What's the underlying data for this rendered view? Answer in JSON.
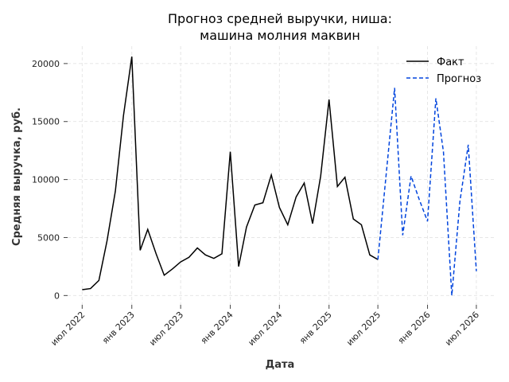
{
  "chart_data": {
    "type": "line",
    "title": [
      "Прогноз средней выручки, ниша:",
      "машина молния маквин"
    ],
    "xlabel": "Дата",
    "ylabel": "Средняя выручка, руб.",
    "x_ticks": [
      {
        "date": "2022-07-01",
        "label": "июл 2022"
      },
      {
        "date": "2023-01-01",
        "label": "янв 2023"
      },
      {
        "date": "2023-07-01",
        "label": "июл 2023"
      },
      {
        "date": "2024-01-01",
        "label": "янв 2024"
      },
      {
        "date": "2024-07-01",
        "label": "июл 2024"
      },
      {
        "date": "2025-01-01",
        "label": "янв 2025"
      },
      {
        "date": "2025-07-01",
        "label": "июл 2025"
      },
      {
        "date": "2026-01-01",
        "label": "янв 2026"
      },
      {
        "date": "2026-07-01",
        "label": "июл 2026"
      }
    ],
    "y_ticks": [
      0,
      5000,
      10000,
      15000,
      20000
    ],
    "xlim": [
      "2022-05-08",
      "2026-09-04"
    ],
    "ylim": [
      -800,
      21500
    ],
    "grid": true,
    "legend_position": "top-right",
    "series": [
      {
        "name": "Факт",
        "color": "#000000",
        "style": "solid",
        "x": [
          "2022-07-01",
          "2022-08-01",
          "2022-09-01",
          "2022-10-01",
          "2022-11-01",
          "2022-12-01",
          "2023-01-01",
          "2023-02-01",
          "2023-03-01",
          "2023-04-01",
          "2023-05-01",
          "2023-06-01",
          "2023-07-01",
          "2023-08-01",
          "2023-09-01",
          "2023-10-01",
          "2023-11-01",
          "2023-12-01",
          "2024-01-01",
          "2024-02-01",
          "2024-03-01",
          "2024-04-01",
          "2024-05-01",
          "2024-06-01",
          "2024-07-01",
          "2024-08-01",
          "2024-09-01",
          "2024-10-01",
          "2024-11-01",
          "2024-12-01",
          "2025-01-01",
          "2025-02-01",
          "2025-03-01",
          "2025-04-01",
          "2025-05-01",
          "2025-06-01",
          "2025-07-01"
        ],
        "values": [
          500,
          600,
          1300,
          4700,
          9000,
          15500,
          20600,
          3900,
          5700,
          3600,
          1750,
          2300,
          2900,
          3300,
          4100,
          3500,
          3200,
          3600,
          12400,
          2500,
          5900,
          7800,
          8000,
          10400,
          7600,
          6100,
          8500,
          9700,
          6200,
          10300,
          16900,
          9400,
          10200,
          6600,
          6100,
          3500,
          3100
        ]
      },
      {
        "name": "Прогноз",
        "color": "#0044dd",
        "style": "dashed",
        "x": [
          "2025-07-01",
          "2025-08-01",
          "2025-09-01",
          "2025-10-01",
          "2025-11-01",
          "2025-12-01",
          "2026-01-01",
          "2026-02-01",
          "2026-03-01",
          "2026-04-01",
          "2026-05-01",
          "2026-06-01",
          "2026-07-01"
        ],
        "values": [
          3100,
          10500,
          17900,
          5200,
          10300,
          8300,
          6400,
          17000,
          12400,
          0,
          8100,
          13000,
          2100
        ]
      }
    ]
  }
}
